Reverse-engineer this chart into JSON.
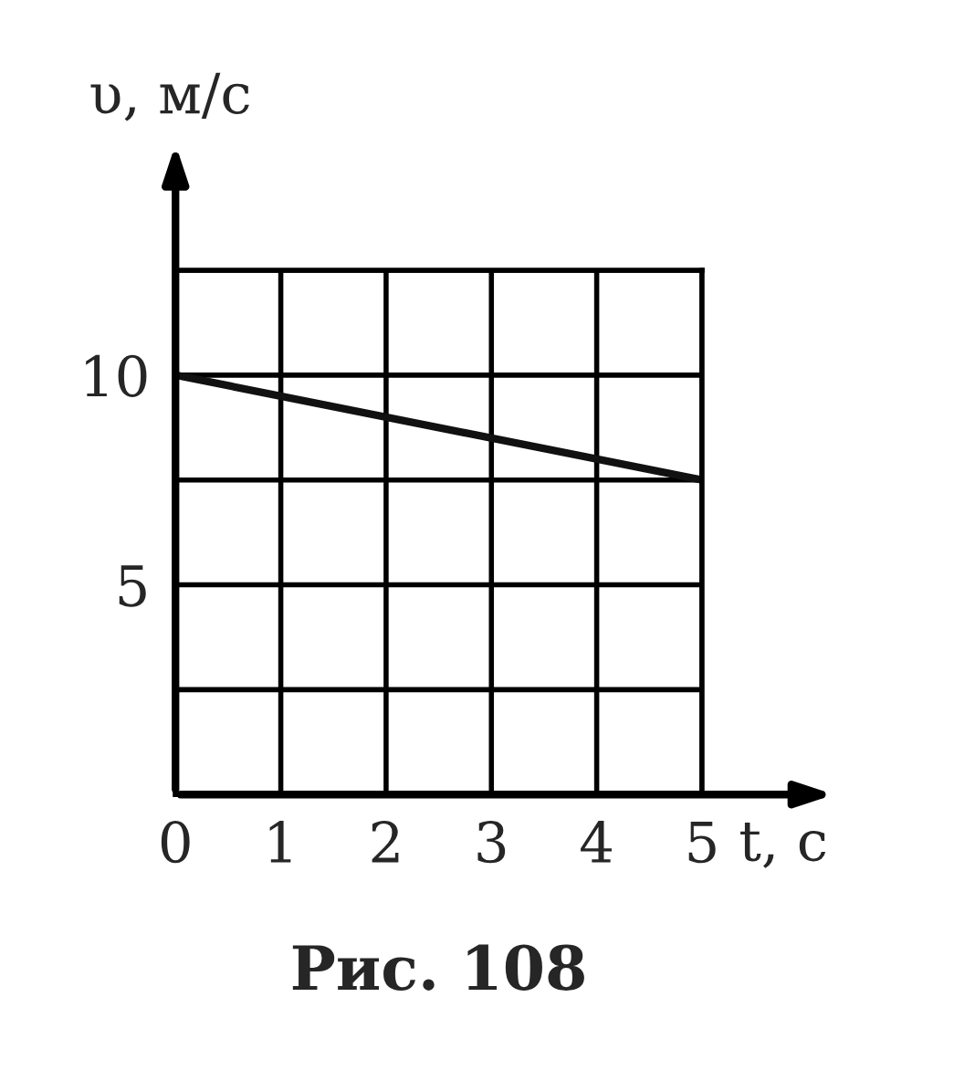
{
  "chart_data": {
    "type": "line",
    "xlabel": "t, с",
    "ylabel": "υ, м/с",
    "annotations": [
      "Рис. 108"
    ],
    "x": [
      0,
      5
    ],
    "series": [
      {
        "color": "#111111",
        "values": [
          10,
          7.5
        ]
      }
    ],
    "xlim": [
      0,
      5
    ],
    "ylim": [
      0,
      12.5
    ],
    "xticks": [
      0,
      1,
      2,
      3,
      4,
      5
    ],
    "yticks": [
      {
        "value": 0,
        "label": null
      },
      {
        "value": 2.5,
        "label": null
      },
      5,
      {
        "value": 7.5,
        "label": null
      },
      10,
      {
        "value": 12.5,
        "label": null
      }
    ],
    "grid": true,
    "marker": "none",
    "line_style": "solid"
  }
}
